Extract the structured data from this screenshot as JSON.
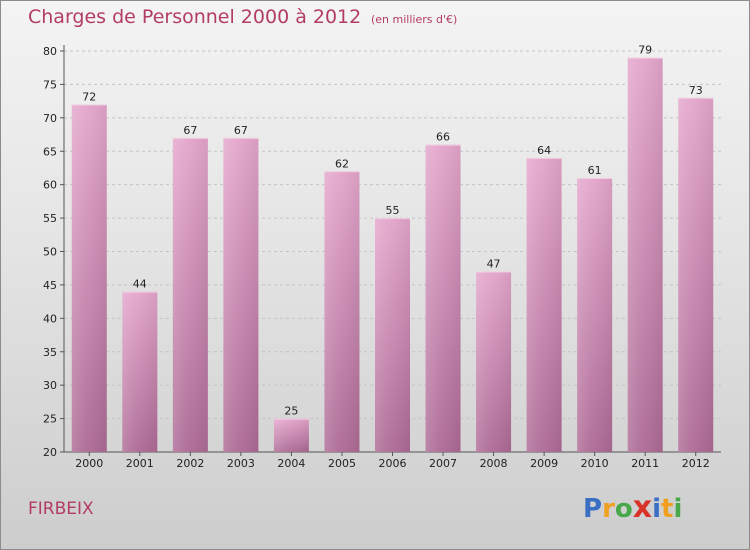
{
  "title": "Charges de Personnel 2000 à 2012",
  "subtitle": "(en milliers d'€)",
  "commune": "FIRBEIX",
  "logo": {
    "text": "Proxiti",
    "letters": [
      {
        "char": "P",
        "color": "#3a6fc4"
      },
      {
        "char": "r",
        "color": "#f0a020"
      },
      {
        "char": "o",
        "color": "#49a84a"
      },
      {
        "char": "x",
        "color": "#d8322a"
      },
      {
        "char": "i",
        "color": "#3a6fc4"
      },
      {
        "char": "t",
        "color": "#f0a020"
      },
      {
        "char": "i",
        "color": "#49a84a"
      }
    ]
  },
  "colors": {
    "bar_top": "#e4a6cc",
    "bar_bottom": "#ad6a95",
    "accent": "#b33c66"
  },
  "chart_data": {
    "type": "bar",
    "categories": [
      "2000",
      "2001",
      "2002",
      "2003",
      "2004",
      "2005",
      "2006",
      "2007",
      "2008",
      "2009",
      "2010",
      "2011",
      "2012"
    ],
    "values": [
      72,
      44,
      67,
      67,
      25,
      62,
      55,
      66,
      47,
      64,
      61,
      79,
      73
    ],
    "ylim": [
      20,
      80
    ],
    "yticks": [
      20,
      25,
      30,
      35,
      40,
      45,
      50,
      55,
      60,
      65,
      70,
      75,
      80
    ],
    "grid": true,
    "title": "Charges de Personnel 2000 à 2012",
    "subtitle": "(en milliers d'€)",
    "xlabel": "",
    "ylabel": ""
  }
}
